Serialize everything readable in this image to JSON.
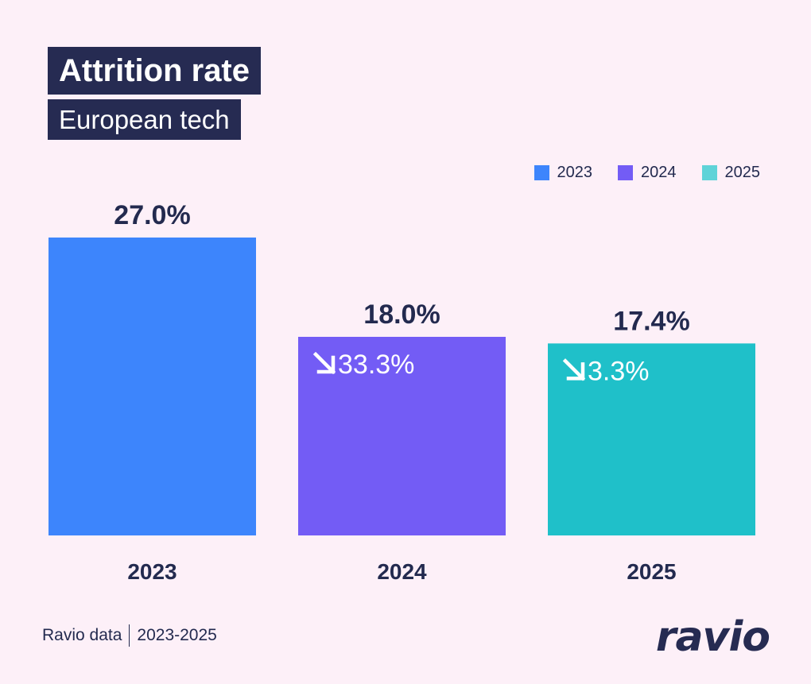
{
  "header": {
    "title": "Attrition rate",
    "subtitle": "European tech"
  },
  "legend": [
    {
      "label": "2023",
      "color": "#3d85fc"
    },
    {
      "label": "2024",
      "color": "#735cf5"
    },
    {
      "label": "2025",
      "color": "#5fd3d8"
    }
  ],
  "footer": {
    "source": "Ravio data",
    "period": "2023-2025",
    "logo": "ravio"
  },
  "chart_data": {
    "type": "bar",
    "title": "Attrition rate",
    "subtitle": "European tech",
    "xlabel": "",
    "ylabel": "",
    "categories": [
      "2023",
      "2024",
      "2025"
    ],
    "values": [
      27.0,
      18.0,
      17.4
    ],
    "value_labels": [
      "27.0%",
      "18.0%",
      "17.4%"
    ],
    "change_labels": [
      null,
      "33.3%",
      "3.3%"
    ],
    "change_direction": [
      null,
      "down",
      "down"
    ],
    "change_icon": "arrow-down-right-icon",
    "colors": [
      "#3d85fc",
      "#735cf5",
      "#1fc0c9"
    ],
    "ylim": [
      0,
      27.0
    ],
    "grid": false,
    "legend_position": "top-right",
    "legend": [
      "2023",
      "2024",
      "2025"
    ]
  }
}
